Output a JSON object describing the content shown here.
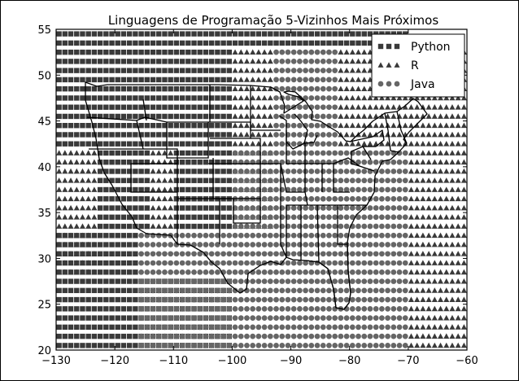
{
  "chart_data": {
    "type": "scatter",
    "title": "Linguagens de Programação 5-Vizinhos Mais Próximos",
    "xlabel": "",
    "ylabel": "",
    "xlim": [
      -130,
      -60
    ],
    "ylim": [
      20,
      55
    ],
    "x_ticks": [
      -130,
      -120,
      -110,
      -100,
      -90,
      -80,
      -70,
      -60
    ],
    "y_ticks": [
      20,
      25,
      30,
      35,
      40,
      45,
      50,
      55
    ],
    "x_tick_labels": [
      "−130",
      "−120",
      "−110",
      "−100",
      "−90",
      "−80",
      "−70",
      "−60"
    ],
    "y_tick_labels": [
      "20",
      "25",
      "30",
      "35",
      "40",
      "45",
      "50",
      "55"
    ],
    "grid": false,
    "legend_position": "top-right",
    "grid_step": 1,
    "series": [
      {
        "name": "Python",
        "marker": "square",
        "color": "#3a3a3a",
        "regions": [
          {
            "x": [
              -130,
              -100
            ],
            "y": [
              20,
              28
            ]
          },
          {
            "x": [
              -130,
              -116
            ],
            "y": [
              28,
              33
            ]
          },
          {
            "x": [
              -123,
              -114
            ],
            "y": [
              33,
              42
            ]
          },
          {
            "x": [
              -110,
              -100
            ],
            "y": [
              33,
              42
            ]
          },
          {
            "x": [
              -130,
              -100
            ],
            "y": [
              42,
              55
            ]
          },
          {
            "x": [
              -100,
              -70
            ],
            "y": [
              53,
              55
            ]
          }
        ]
      },
      {
        "name": "R",
        "marker": "triangle",
        "color": "#3a3a3a",
        "regions": [
          {
            "x": [
              -130,
              -123
            ],
            "y": [
              28,
              42
            ]
          },
          {
            "x": [
              -115,
              -110
            ],
            "y": [
              33,
              42
            ]
          },
          {
            "x": [
              -100,
              -93
            ],
            "y": [
              33,
              53
            ]
          },
          {
            "x": [
              -70,
              -60
            ],
            "y": [
              20,
              53
            ]
          },
          {
            "x": [
              -82,
              -70
            ],
            "y": [
              42,
              53
            ]
          }
        ]
      },
      {
        "name": "Java",
        "marker": "circle",
        "color": "#666666",
        "regions": [
          {
            "x": [
              -116,
              -100
            ],
            "y": [
              20,
              33
            ]
          },
          {
            "x": [
              -100,
              -70
            ],
            "y": [
              20,
              42
            ]
          },
          {
            "x": [
              -93,
              -82
            ],
            "y": [
              42,
              53
            ]
          }
        ]
      }
    ]
  }
}
